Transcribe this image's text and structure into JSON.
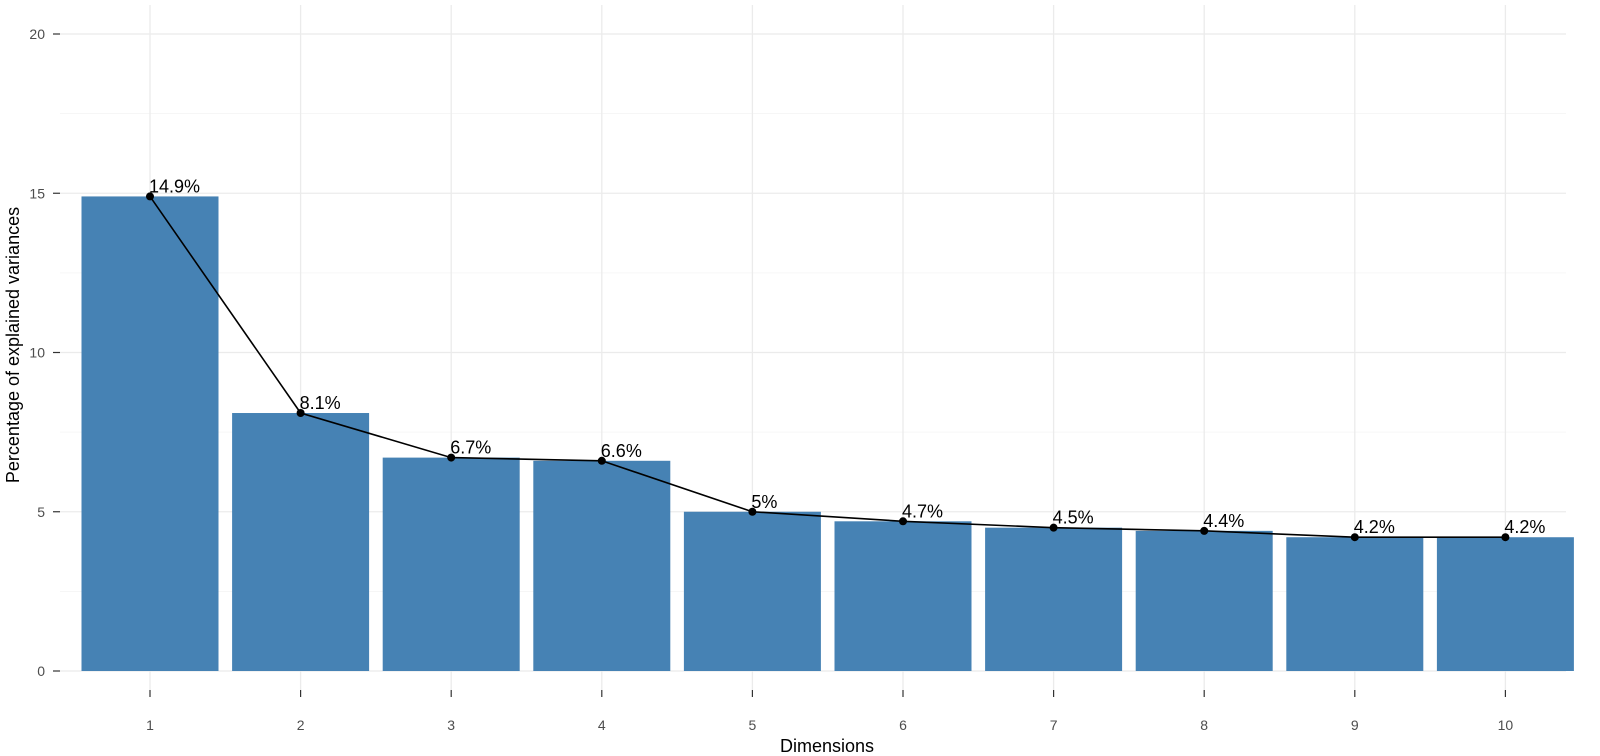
{
  "chart_data": {
    "type": "bar",
    "categories": [
      "1",
      "2",
      "3",
      "4",
      "5",
      "6",
      "7",
      "8",
      "9",
      "10"
    ],
    "values": [
      14.9,
      8.1,
      6.7,
      6.6,
      5.0,
      4.7,
      4.5,
      4.4,
      4.2,
      4.2
    ],
    "data_labels": [
      "14.9%",
      "8.1%",
      "6.7%",
      "6.6%",
      "5%",
      "4.7%",
      "4.5%",
      "4.4%",
      "4.2%",
      "4.2%"
    ],
    "overlay": "line with points through bar tops",
    "title": "",
    "xlabel": "Dimensions",
    "ylabel": "Percentage of explained variances",
    "ylim": [
      0,
      20
    ],
    "yticks": [
      "0",
      "5",
      "10",
      "15",
      "20"
    ],
    "grid": true,
    "legend": "none",
    "bar_color": "#4682b4",
    "line_color": "#000000"
  }
}
